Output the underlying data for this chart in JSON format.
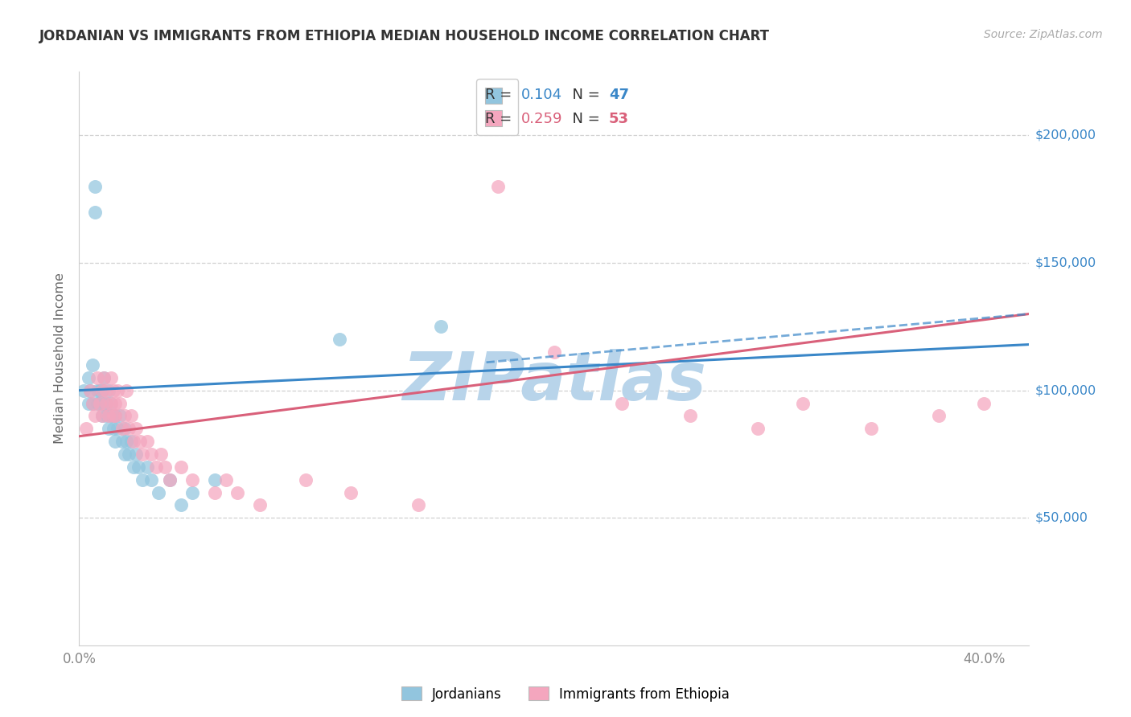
{
  "title": "JORDANIAN VS IMMIGRANTS FROM ETHIOPIA MEDIAN HOUSEHOLD INCOME CORRELATION CHART",
  "source": "Source: ZipAtlas.com",
  "ylabel": "Median Household Income",
  "ytick_labels": [
    "$50,000",
    "$100,000",
    "$150,000",
    "$200,000"
  ],
  "ytick_values": [
    50000,
    100000,
    150000,
    200000
  ],
  "ylim": [
    0,
    225000
  ],
  "xlim": [
    0.0,
    0.42
  ],
  "color_blue": "#92c5de",
  "color_pink": "#f4a6be",
  "color_line_blue": "#3a87c8",
  "color_line_pink": "#d9607a",
  "color_axis_right": "#3a87c8",
  "background_color": "#ffffff",
  "watermark": "ZIPatlas",
  "watermark_color": "#b8d4ea",
  "R1": "0.104",
  "N1": "47",
  "R2": "0.259",
  "N2": "53",
  "jordanians_x": [
    0.002,
    0.004,
    0.004,
    0.005,
    0.006,
    0.006,
    0.007,
    0.007,
    0.008,
    0.008,
    0.009,
    0.009,
    0.01,
    0.01,
    0.011,
    0.011,
    0.012,
    0.012,
    0.013,
    0.013,
    0.014,
    0.014,
    0.015,
    0.015,
    0.016,
    0.016,
    0.017,
    0.018,
    0.019,
    0.02,
    0.02,
    0.021,
    0.022,
    0.023,
    0.024,
    0.025,
    0.026,
    0.028,
    0.03,
    0.032,
    0.035,
    0.04,
    0.045,
    0.05,
    0.06,
    0.115,
    0.16
  ],
  "jordanians_y": [
    100000,
    95000,
    105000,
    100000,
    95000,
    110000,
    170000,
    180000,
    95000,
    100000,
    100000,
    95000,
    100000,
    90000,
    95000,
    105000,
    90000,
    95000,
    85000,
    100000,
    90000,
    95000,
    85000,
    90000,
    80000,
    90000,
    85000,
    90000,
    80000,
    85000,
    75000,
    80000,
    75000,
    80000,
    70000,
    75000,
    70000,
    65000,
    70000,
    65000,
    60000,
    65000,
    55000,
    60000,
    65000,
    120000,
    125000
  ],
  "ethiopia_x": [
    0.003,
    0.005,
    0.006,
    0.007,
    0.008,
    0.009,
    0.01,
    0.01,
    0.011,
    0.012,
    0.012,
    0.013,
    0.014,
    0.014,
    0.015,
    0.015,
    0.016,
    0.016,
    0.017,
    0.018,
    0.019,
    0.02,
    0.021,
    0.022,
    0.023,
    0.024,
    0.025,
    0.027,
    0.028,
    0.03,
    0.032,
    0.034,
    0.036,
    0.038,
    0.04,
    0.045,
    0.05,
    0.06,
    0.065,
    0.07,
    0.08,
    0.1,
    0.12,
    0.15,
    0.185,
    0.21,
    0.24,
    0.27,
    0.3,
    0.32,
    0.35,
    0.38,
    0.4
  ],
  "ethiopia_y": [
    85000,
    100000,
    95000,
    90000,
    105000,
    95000,
    100000,
    90000,
    105000,
    95000,
    100000,
    90000,
    105000,
    95000,
    90000,
    100000,
    95000,
    90000,
    100000,
    95000,
    85000,
    90000,
    100000,
    85000,
    90000,
    80000,
    85000,
    80000,
    75000,
    80000,
    75000,
    70000,
    75000,
    70000,
    65000,
    70000,
    65000,
    60000,
    65000,
    60000,
    55000,
    65000,
    60000,
    55000,
    180000,
    115000,
    95000,
    90000,
    85000,
    95000,
    85000,
    90000,
    95000
  ],
  "blue_line_x0": 0.0,
  "blue_line_y0": 100000,
  "blue_line_x1": 0.42,
  "blue_line_y1": 118000,
  "pink_line_x0": 0.0,
  "pink_line_y0": 82000,
  "pink_line_x1": 0.42,
  "pink_line_y1": 130000,
  "dash_line_x0": 0.18,
  "dash_line_y0": 111000,
  "dash_line_x1": 0.42,
  "dash_line_y1": 130000
}
